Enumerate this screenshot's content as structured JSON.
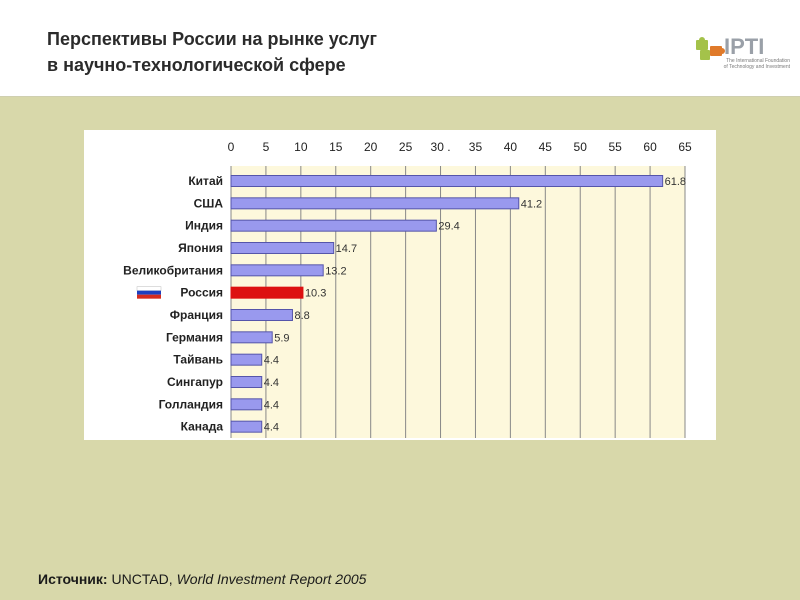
{
  "slide": {
    "title_line1": "Перспективы России на рынке услуг",
    "title_line2": "в научно-технологической сфере",
    "logo": {
      "name": "IPTI",
      "subtitle_line1": "The International Foundation",
      "subtitle_line2": "of Technology and Investment",
      "colors": [
        "#a4c24a",
        "#e07a2a",
        "#9aa0a8"
      ]
    },
    "source": {
      "label": "Источник:",
      "org": "UNCTAD,",
      "report": "World Investment Report 2005"
    }
  },
  "chart_data": {
    "type": "bar",
    "orientation": "horizontal",
    "categories": [
      "Китай",
      "США",
      "Индия",
      "Япония",
      "Великобритания",
      "Россия",
      "Франция",
      "Германия",
      "Тайвань",
      "Сингапур",
      "Голландия",
      "Канада"
    ],
    "values": [
      61.8,
      41.2,
      29.4,
      14.7,
      13.2,
      10.3,
      8.8,
      5.9,
      4.4,
      4.4,
      4.4,
      4.4
    ],
    "value_labels": [
      "61.8",
      "41.2",
      "29.4",
      "14.7",
      "13.2",
      "10.3",
      "8.8",
      "5.9",
      "4.4",
      "4.4",
      "4.4",
      "4.4"
    ],
    "x_ticks": [
      "0",
      "5",
      "10",
      "15",
      "20",
      "25",
      "30 .",
      "35",
      "40",
      "45",
      "50",
      "55",
      "60",
      "65"
    ],
    "xlim": [
      0,
      65
    ],
    "x_axis_position": "top",
    "grid": true,
    "highlight_category": "Россия",
    "colors": {
      "bar": "#9999ee",
      "bar_border": "#5555aa",
      "highlight": "#dd1111",
      "plot_background": "#fdf8dc",
      "grid": "#888888",
      "flag_white": "#ffffff",
      "flag_blue": "#1d3fbf",
      "flag_red": "#d52b1e"
    }
  }
}
